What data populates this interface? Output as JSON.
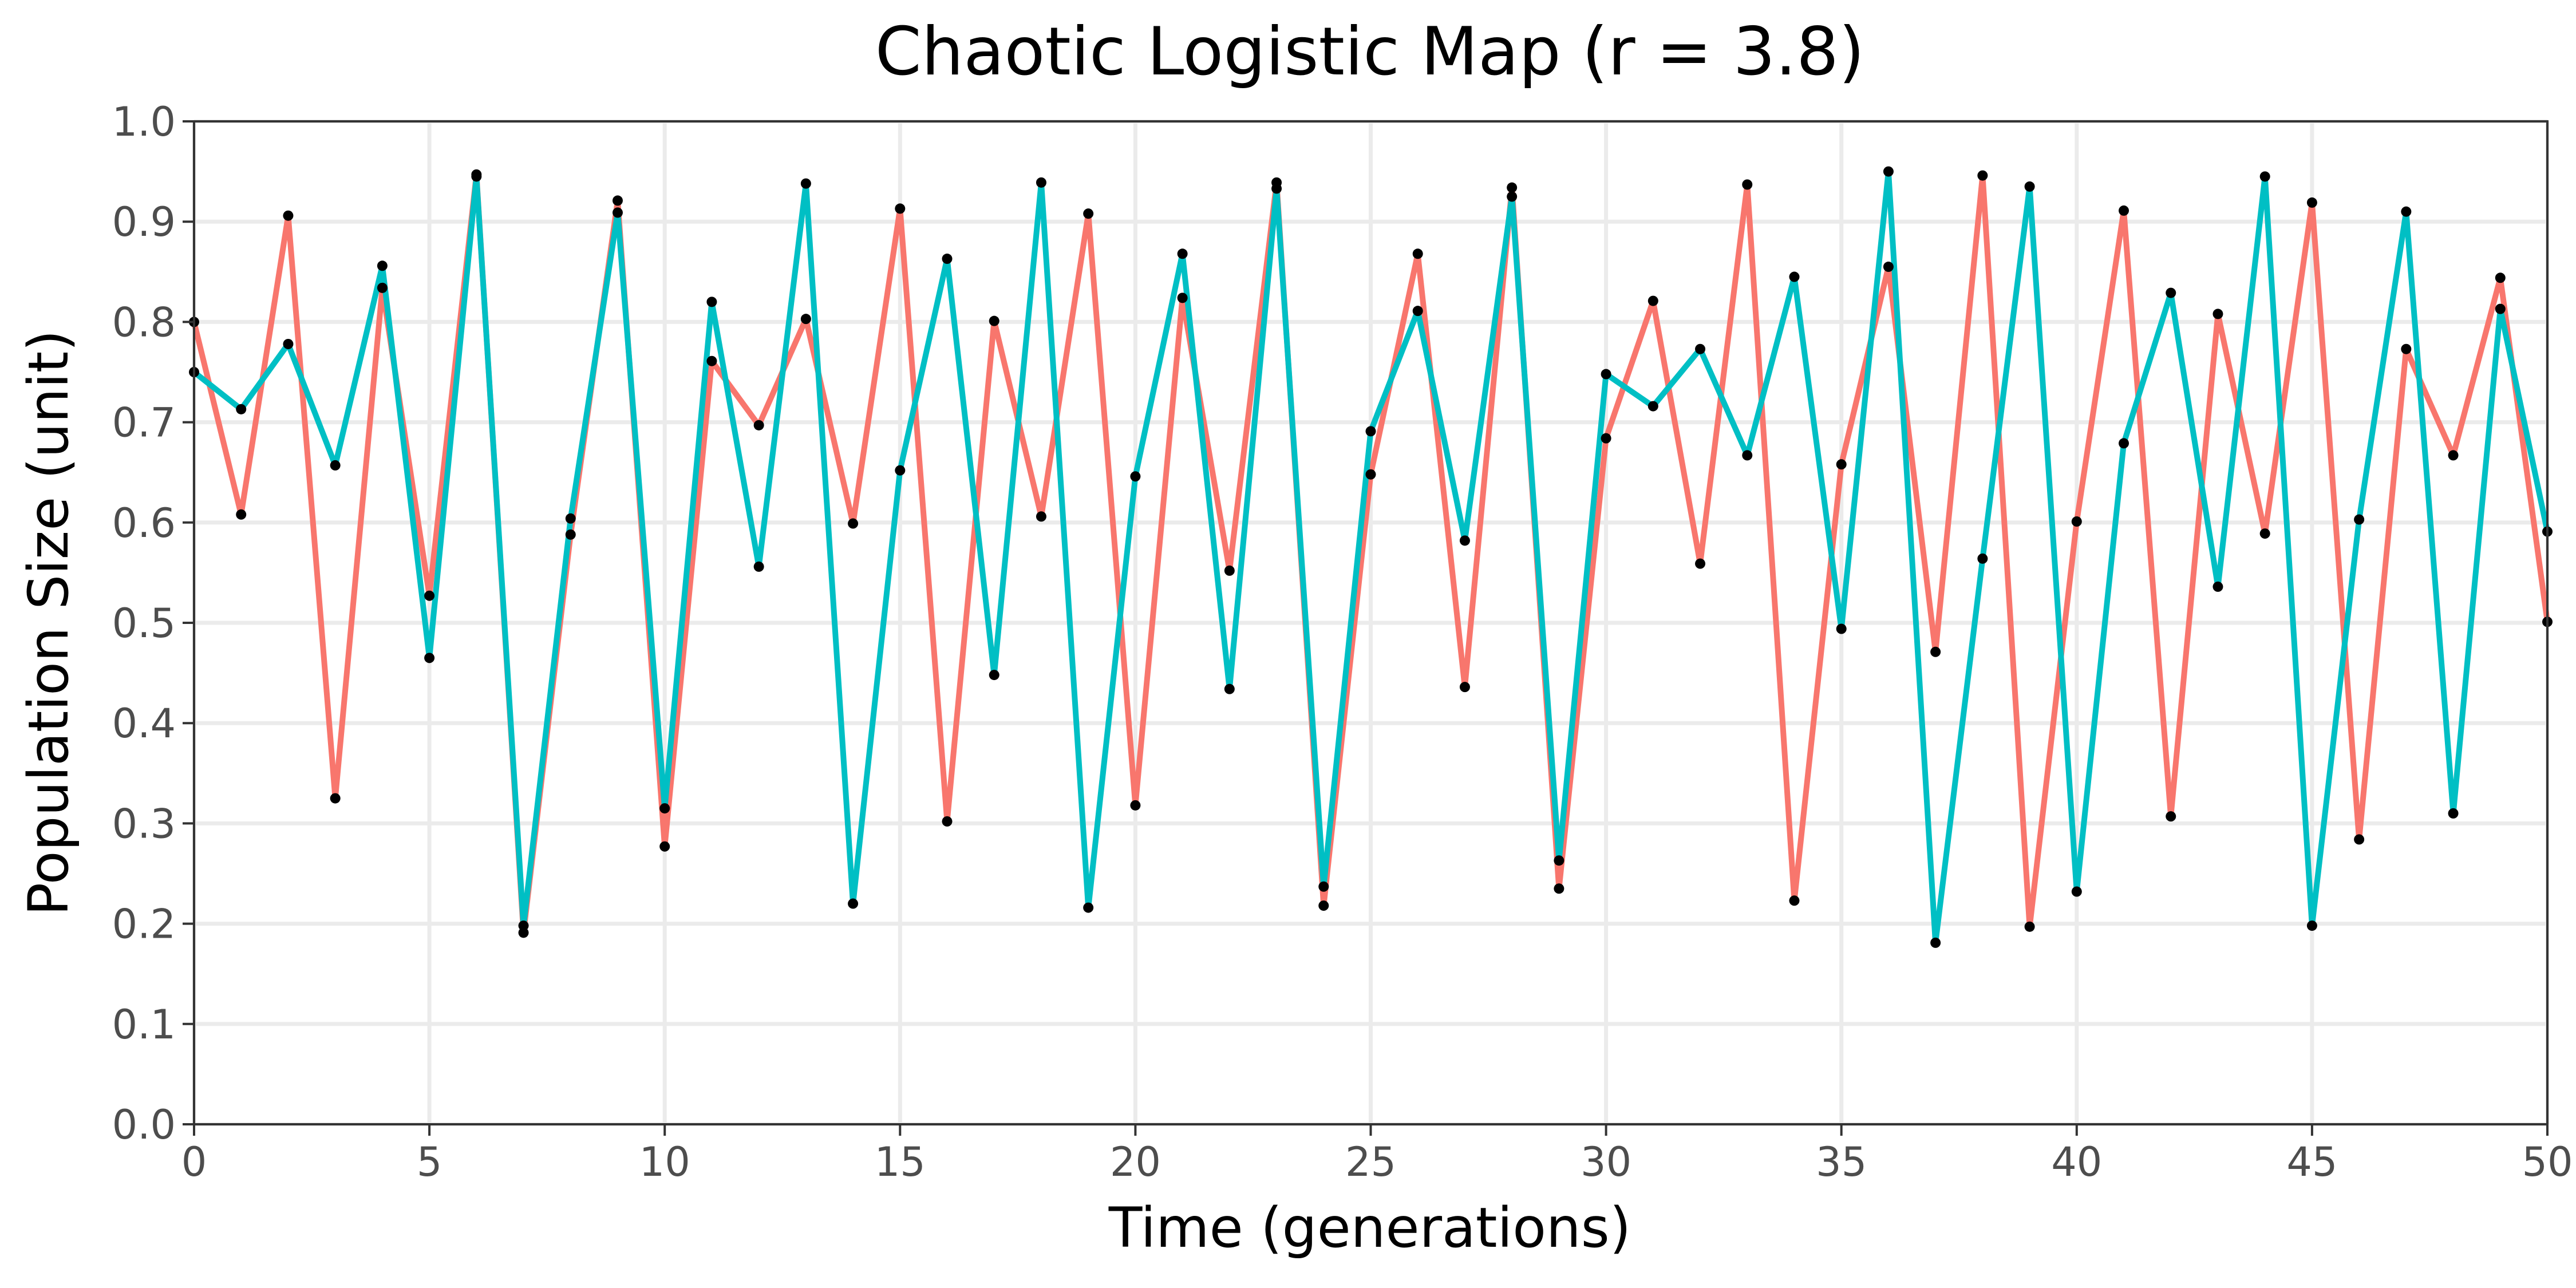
{
  "chart_data": {
    "type": "line",
    "title": "Chaotic Logistic Map (r = 3.8)",
    "xlabel": "Time (generations)",
    "ylabel": "Population Size (unit)",
    "xlim": [
      0,
      50
    ],
    "ylim": [
      0,
      1
    ],
    "x_ticks": [
      "0",
      "5",
      "10",
      "15",
      "20",
      "25",
      "30",
      "35",
      "40",
      "45",
      "50"
    ],
    "y_ticks": [
      "0.0",
      "0.1",
      "0.2",
      "0.3",
      "0.4",
      "0.5",
      "0.6",
      "0.7",
      "0.8",
      "0.9",
      "1.0"
    ],
    "grid": true,
    "legend": "none",
    "point_color": "#000000",
    "x": [
      0,
      1,
      2,
      3,
      4,
      5,
      6,
      7,
      8,
      9,
      10,
      11,
      12,
      13,
      14,
      15,
      16,
      17,
      18,
      19,
      20,
      21,
      22,
      23,
      24,
      25,
      26,
      27,
      28,
      29,
      30,
      31,
      32,
      33,
      34,
      35,
      36,
      37,
      38,
      39,
      40,
      41,
      42,
      43,
      44,
      45,
      46,
      47,
      48,
      49,
      50
    ],
    "series": [
      {
        "color": "#f8766d",
        "values": [
          0.8,
          0.608,
          0.906,
          0.325,
          0.834,
          0.527,
          0.947,
          0.191,
          0.588,
          0.921,
          0.277,
          0.761,
          0.697,
          0.803,
          0.599,
          0.913,
          0.302,
          0.801,
          0.606,
          0.908,
          0.318,
          0.824,
          0.552,
          0.939,
          0.218,
          0.648,
          0.868,
          0.436,
          0.934,
          0.235,
          0.684,
          0.821,
          0.559,
          0.937,
          0.223,
          0.658,
          0.855,
          0.471,
          0.946,
          0.197,
          0.601,
          0.911,
          0.307,
          0.808,
          0.589,
          0.919,
          0.284,
          0.773,
          0.667,
          0.844,
          0.501
        ]
      },
      {
        "color": "#00bfc4",
        "values": [
          0.75,
          0.713,
          0.778,
          0.657,
          0.856,
          0.465,
          0.945,
          0.198,
          0.604,
          0.909,
          0.315,
          0.82,
          0.556,
          0.938,
          0.22,
          0.652,
          0.863,
          0.448,
          0.939,
          0.216,
          0.646,
          0.868,
          0.434,
          0.933,
          0.237,
          0.691,
          0.811,
          0.582,
          0.925,
          0.263,
          0.748,
          0.716,
          0.773,
          0.667,
          0.845,
          0.494,
          0.95,
          0.181,
          0.564,
          0.935,
          0.232,
          0.679,
          0.829,
          0.536,
          0.945,
          0.198,
          0.603,
          0.91,
          0.31,
          0.813,
          0.591
        ]
      }
    ]
  }
}
